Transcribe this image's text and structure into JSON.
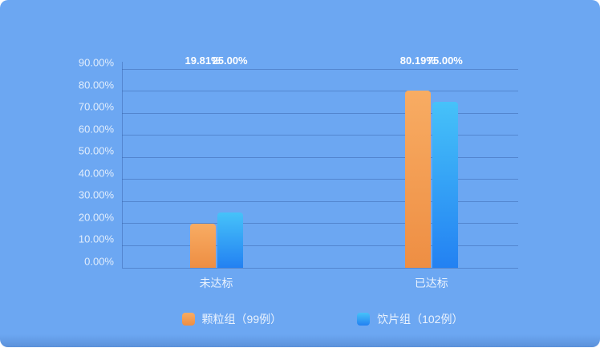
{
  "colors": {
    "card_background": "#6ca7f2",
    "gridline": "rgba(56,99,170,0.48)",
    "axis_text": "#ebf3fd",
    "data_label": "#ffffff",
    "series_orange_top": "#f8ac63",
    "series_orange_bottom": "#ee8e43",
    "series_blue_top": "#46c2f9",
    "series_blue_bottom": "#2381f2"
  },
  "chart_data": {
    "type": "bar",
    "title": "",
    "xlabel": "",
    "ylabel": "",
    "categories": [
      "未达标",
      "已达标"
    ],
    "series": [
      {
        "name": "颗粒组（99例）",
        "values": [
          19.81,
          80.19
        ],
        "labels": [
          "19.81%",
          "80.19%"
        ],
        "color_top": "#f8ac63",
        "color_bottom": "#ee8e43"
      },
      {
        "name": "饮片组（102例）",
        "values": [
          25.0,
          75.0
        ],
        "labels": [
          "25.00%",
          "75.00%"
        ],
        "color_top": "#46c2f9",
        "color_bottom": "#2381f2"
      }
    ],
    "ylim": [
      0,
      90
    ],
    "ytick_step": 10,
    "yticks": [
      "0.00%",
      "10.00%",
      "20.00%",
      "30.00%",
      "40.00%",
      "50.00%",
      "60.00%",
      "70.00%",
      "80.00%",
      "90.00%"
    ],
    "grid": true,
    "legend_position": "bottom",
    "group_center_percents": [
      23.8,
      78.1
    ]
  }
}
